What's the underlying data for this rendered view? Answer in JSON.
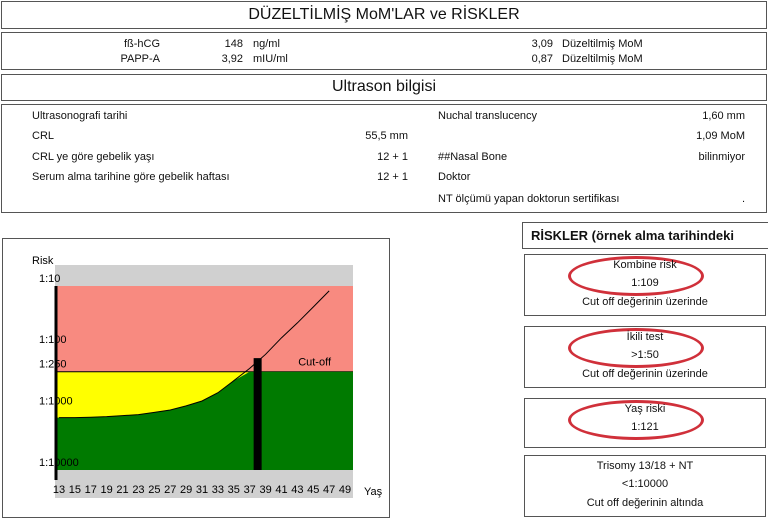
{
  "header": {
    "title": "DÜZELTİLMİŞ  MoM'LAR ve RİSKLER"
  },
  "moms": [
    {
      "name": "fß-hCG",
      "value": "148",
      "unit": "ng/ml",
      "mom": "3,09",
      "mom_label": "Düzeltilmiş  MoM"
    },
    {
      "name": "PAPP-A",
      "value": "3,92",
      "unit": "mIU/ml",
      "mom": "0,87",
      "mom_label": "Düzeltilmiş  MoM"
    }
  ],
  "ultrasound": {
    "title": "Ultrason bilgisi",
    "left": [
      {
        "label": "Ultrasonografi tarihi"
      },
      {
        "label": "CRL",
        "value": "55,5 mm"
      },
      {
        "label": "CRL ye göre gebelik yaşı",
        "value": "12 +  1"
      },
      {
        "label": "Serum alma tarihine göre gebelik haftası",
        "value": "12 +  1"
      }
    ],
    "right": [
      {
        "label": "Nuchal translucency",
        "value": "1,60   mm"
      },
      {
        "value": "1,09 MoM"
      },
      {
        "label": "##Nasal Bone",
        "value": "bilinmiyor"
      },
      {
        "label": "Doktor"
      },
      {
        "label": "NT ölçümü yapan doktorun sertifikası",
        "value": "."
      }
    ]
  },
  "risks": {
    "title": "RİSKLER (örnek alma tarihindeki",
    "boxes": [
      {
        "name": "Kombine risk",
        "value": "1:109",
        "note": "Cut off değerinin üzerinde"
      },
      {
        "name": "İkili test",
        "value": ">1:50",
        "note": "Cut off değerinin üzerinde"
      },
      {
        "name": "Yaş riski",
        "value": "1:121"
      },
      {
        "name": "Trisomy 13/18 + NT",
        "value": "<1:10000",
        "note": "Cut off değerinin altında"
      }
    ]
  },
  "chart_data": {
    "type": "line",
    "y_label": "Risk",
    "x_label": "Yaş",
    "cutoff_label": "Cut-off",
    "cutoff": 250,
    "x": [
      13,
      15,
      17,
      19,
      21,
      23,
      25,
      27,
      29,
      31,
      33,
      35,
      37,
      39,
      41,
      43,
      45,
      47
    ],
    "values": [
      1400,
      1400,
      1380,
      1350,
      1300,
      1250,
      1150,
      1050,
      900,
      750,
      550,
      350,
      220,
      130,
      70,
      40,
      22,
      12
    ],
    "marker": {
      "x": 38,
      "value": 150
    },
    "log_y": true,
    "xlim": [
      12.5,
      50
    ],
    "ylim": [
      10,
      10000
    ],
    "xticks": [
      13,
      15,
      17,
      19,
      21,
      23,
      25,
      27,
      29,
      31,
      33,
      35,
      37,
      39,
      41,
      43,
      45,
      47,
      49
    ],
    "yticks": [
      {
        "value": 10,
        "label": "1:10"
      },
      {
        "value": 100,
        "label": "1:100"
      },
      {
        "value": 250,
        "label": "1:250"
      },
      {
        "value": 1000,
        "label": "1:1000"
      },
      {
        "value": 10000,
        "label": "1:10000"
      }
    ],
    "colors": {
      "high": "#f88a80",
      "mid": "#ffff00",
      "low": "#007a00",
      "line": "#000000",
      "marker": "#000000"
    }
  }
}
